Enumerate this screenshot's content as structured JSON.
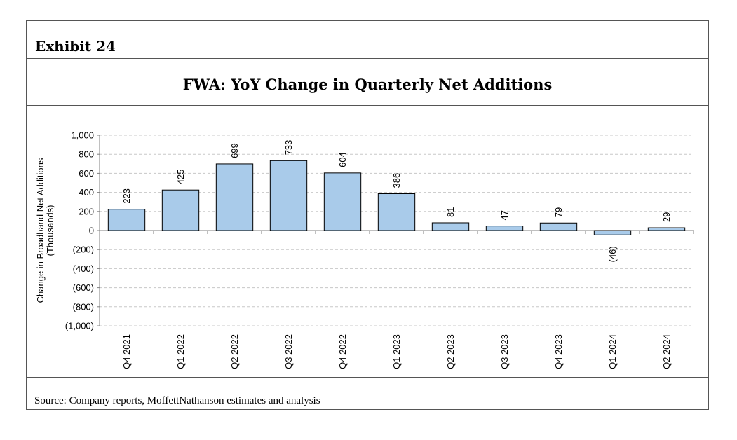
{
  "header": {
    "exhibit": "Exhibit 24"
  },
  "footer": {
    "source": "Source: Company reports, MoffettNathanson estimates and analysis"
  },
  "chart_data": {
    "type": "bar",
    "title": "FWA: YoY Change in Quarterly Net Additions",
    "ylabel_line1": "Change in Broadband Net Additions",
    "ylabel_line2": "(Thousands)",
    "xlabel": "",
    "categories": [
      "Q4 2021",
      "Q1 2022",
      "Q2 2022",
      "Q3 2022",
      "Q4 2022",
      "Q1 2023",
      "Q2 2023",
      "Q3 2023",
      "Q4 2023",
      "Q1 2024",
      "Q2 2024"
    ],
    "values": [
      223,
      425,
      699,
      733,
      604,
      386,
      81,
      47,
      79,
      -46,
      29
    ],
    "data_labels": [
      "223",
      "425",
      "699",
      "733",
      "604",
      "386",
      "81",
      "47",
      "79",
      "(46)",
      "29"
    ],
    "ylim": [
      -1000,
      1000
    ],
    "yticks": [
      1000,
      800,
      600,
      400,
      200,
      0,
      -200,
      -400,
      -600,
      -800,
      -1000
    ],
    "ytick_labels": [
      "1,000",
      "800",
      "600",
      "400",
      "200",
      "0",
      "(200)",
      "(400)",
      "(600)",
      "(800)",
      "(1,000)"
    ],
    "grid": true,
    "bar_color": "#a9cbea",
    "bar_edge_color": "#000000"
  }
}
